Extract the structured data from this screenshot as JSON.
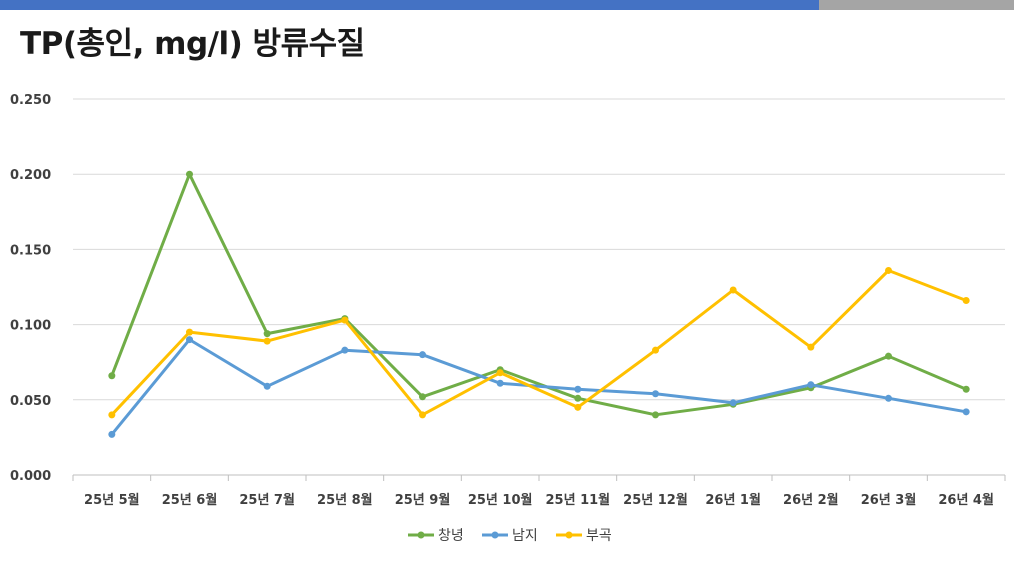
{
  "page": {
    "title": "TP(총인, mg/l) 방류수질"
  },
  "chart_data": {
    "type": "line",
    "title": "",
    "xlabel": "",
    "ylabel": "",
    "categories": [
      "25년 5월",
      "25년 6월",
      "25년 7월",
      "25년 8월",
      "25년 9월",
      "25년 10월",
      "25년 11월",
      "25년 12월",
      "26년 1월",
      "26년 2월",
      "26년 3월",
      "26년 4월"
    ],
    "ylim": [
      0,
      0.25
    ],
    "yticks": [
      "0.000",
      "0.050",
      "0.100",
      "0.150",
      "0.200",
      "0.250"
    ],
    "grid": true,
    "legend_position": "bottom",
    "series": [
      {
        "name": "창녕",
        "color": "#70ad47",
        "values": [
          0.066,
          0.2,
          0.094,
          0.104,
          0.052,
          0.07,
          0.051,
          0.04,
          0.047,
          0.058,
          0.079,
          0.057
        ]
      },
      {
        "name": "남지",
        "color": "#5b9bd5",
        "values": [
          0.027,
          0.09,
          0.059,
          0.083,
          0.08,
          0.061,
          0.057,
          0.054,
          0.048,
          0.06,
          0.051,
          0.042
        ]
      },
      {
        "name": "부곡",
        "color": "#ffc000",
        "values": [
          0.04,
          0.095,
          0.089,
          0.103,
          0.04,
          0.068,
          0.045,
          0.083,
          0.123,
          0.085,
          0.136,
          0.116
        ]
      }
    ]
  }
}
